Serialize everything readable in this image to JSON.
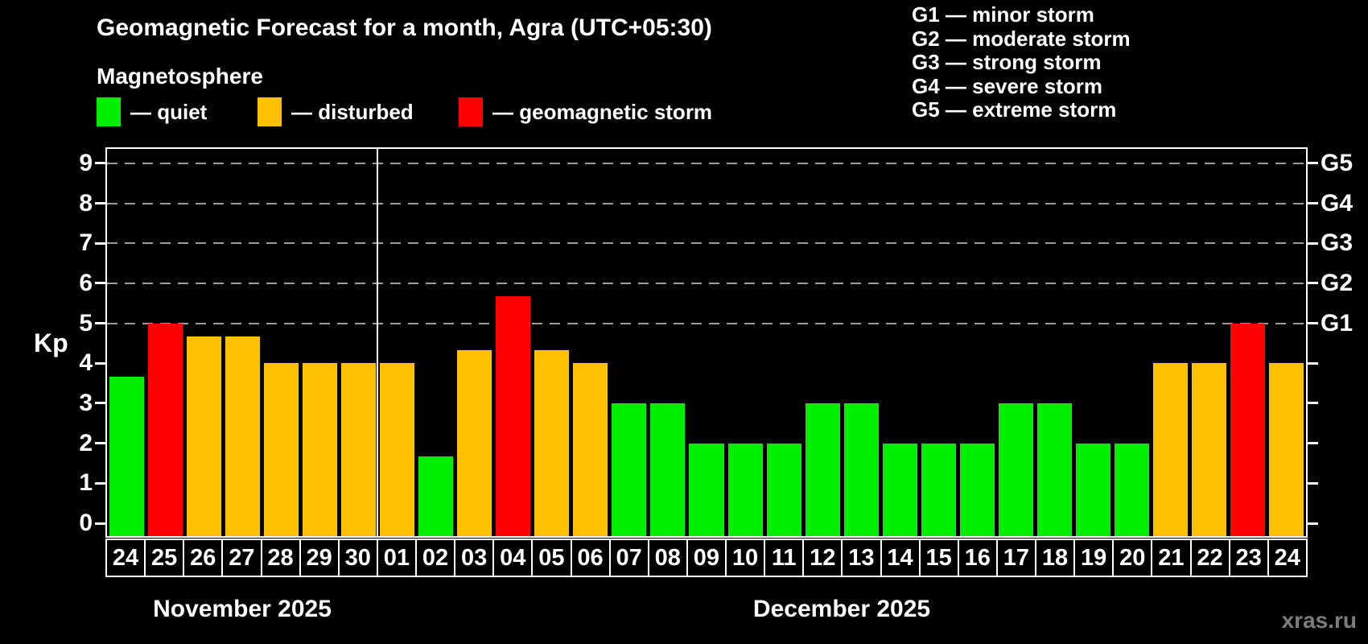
{
  "title": "Geomagnetic Forecast for a month, Agra (UTC+05:30)",
  "subtitle": "Magnetosphere",
  "legend": [
    {
      "status": "quiet",
      "label": "— quiet",
      "color": "#00ed00"
    },
    {
      "status": "disturbed",
      "label": "— disturbed",
      "color": "#ffc000"
    },
    {
      "status": "storm",
      "label": "— geomagnetic storm",
      "color": "#ff0000"
    }
  ],
  "g_scale_legend": [
    "G1 — minor storm",
    "G2 — moderate storm",
    "G3 — strong storm",
    "G4 — severe storm",
    "G5 — extreme storm"
  ],
  "y_axis": {
    "label": "Kp",
    "ticks": [
      0,
      1,
      2,
      3,
      4,
      5,
      6,
      7,
      8,
      9
    ]
  },
  "right_axis": {
    "labels": [
      {
        "text": "G1",
        "kp": 5
      },
      {
        "text": "G2",
        "kp": 6
      },
      {
        "text": "G3",
        "kp": 7
      },
      {
        "text": "G4",
        "kp": 8
      },
      {
        "text": "G5",
        "kp": 9
      }
    ]
  },
  "watermark": "xras.ru",
  "chart_data": {
    "type": "bar",
    "title": "Geomagnetic Forecast for a month, Agra (UTC+05:30)",
    "ylabel": "Kp",
    "ylim": [
      0,
      9
    ],
    "grid": "horizontal dashed lines at Kp 5,6,7,8,9 (G1–G5 storm levels)",
    "gridline_levels": [
      5,
      6,
      7,
      8,
      9
    ],
    "months": [
      {
        "label": "November 2025",
        "days": [
          "24",
          "25",
          "26",
          "27",
          "28",
          "29",
          "30"
        ],
        "values": [
          3.67,
          5,
          4.67,
          4.67,
          4,
          4,
          4
        ],
        "statuses": [
          "quiet",
          "storm",
          "disturbed",
          "disturbed",
          "disturbed",
          "disturbed",
          "disturbed"
        ]
      },
      {
        "label": "December 2025",
        "days": [
          "01",
          "02",
          "03",
          "04",
          "05",
          "06",
          "07",
          "08",
          "09",
          "10",
          "11",
          "12",
          "13",
          "14",
          "15",
          "16",
          "17",
          "18",
          "19",
          "20",
          "21",
          "22",
          "23",
          "24"
        ],
        "values": [
          4,
          1.67,
          4.33,
          5.67,
          4.33,
          4,
          3,
          3,
          2,
          2,
          2,
          3,
          3,
          2,
          2,
          2,
          3,
          3,
          2,
          2,
          4,
          4,
          5,
          4
        ],
        "statuses": [
          "disturbed",
          "quiet",
          "disturbed",
          "storm",
          "disturbed",
          "disturbed",
          "quiet",
          "quiet",
          "quiet",
          "quiet",
          "quiet",
          "quiet",
          "quiet",
          "quiet",
          "quiet",
          "quiet",
          "quiet",
          "quiet",
          "quiet",
          "quiet",
          "disturbed",
          "disturbed",
          "storm",
          "disturbed"
        ]
      }
    ]
  }
}
